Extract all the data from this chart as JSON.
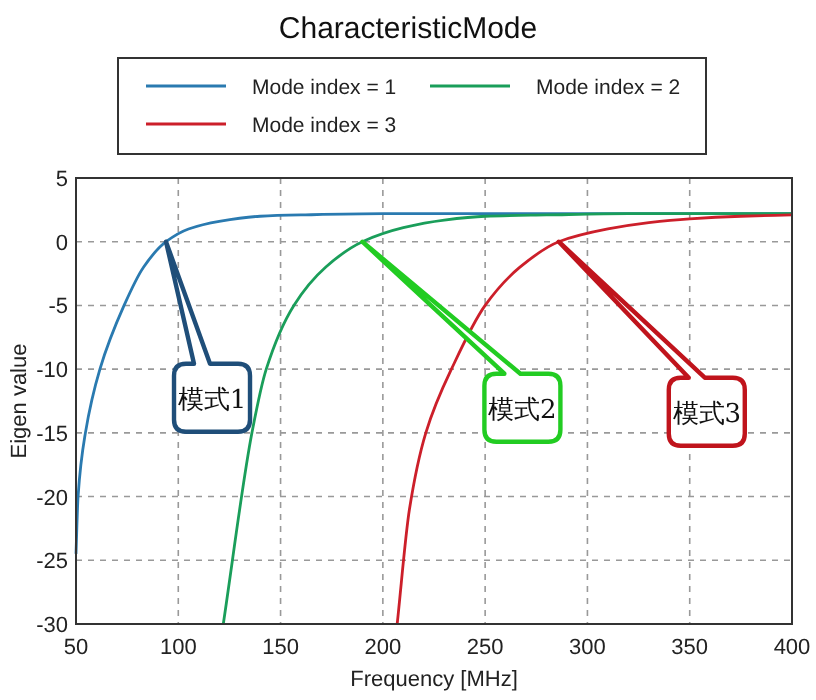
{
  "chart_data": {
    "type": "line",
    "title": "CharacteristicMode",
    "xlabel": "Frequency [MHz]",
    "ylabel": "Eigen value",
    "xlim": [
      50,
      400
    ],
    "xticks": [
      50,
      100,
      150,
      200,
      250,
      300,
      350,
      400
    ],
    "ylim": [
      -30,
      5
    ],
    "yticks": [
      -30,
      -25,
      -20,
      -15,
      -10,
      -5,
      0,
      5
    ],
    "grid": true,
    "legend": "top",
    "line_style": "solid",
    "marker": "none",
    "series": [
      {
        "name": "Mode index = 1",
        "color": "#2a7ab0",
        "x": [
          50,
          51,
          54.6,
          61.7,
          73.5,
          83,
          94,
          105,
          120,
          140,
          160,
          200,
          300,
          400
        ],
        "values": [
          -24.5,
          -20,
          -15,
          -10,
          -5,
          -2,
          0,
          1,
          1.6,
          2,
          2.1,
          2.2,
          2.2,
          2.2
        ]
      },
      {
        "name": "Mode index = 2",
        "color": "#1a9e5a",
        "x": [
          122,
          136,
          143,
          156.5,
          172,
          190,
          210,
          230,
          250,
          280,
          320,
          400
        ],
        "values": [
          -30,
          -15,
          -10,
          -5,
          -2,
          0,
          1.1,
          1.7,
          2,
          2.1,
          2.2,
          2.2
        ]
      },
      {
        "name": "Mode index = 3",
        "color": "#cc1f2a",
        "x": [
          207,
          213,
          221,
          235,
          250,
          267,
          286,
          310,
          330,
          350,
          375,
          400
        ],
        "values": [
          -30,
          -21,
          -15,
          -9.5,
          -5,
          -2,
          0,
          1,
          1.5,
          1.8,
          2,
          2.1
        ]
      }
    ],
    "annotations": [
      "模式1",
      "模式2",
      "模式3"
    ]
  }
}
